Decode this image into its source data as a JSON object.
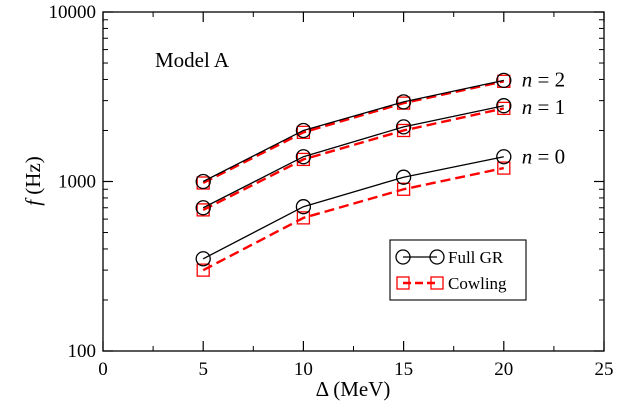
{
  "chart_data": {
    "type": "line",
    "annotation": "Model A",
    "xlabel": "Δ (MeV)",
    "ylabel_italic": "f",
    "ylabel_rest": " (Hz)",
    "xlim": [
      0,
      25
    ],
    "ylim": [
      100,
      10000
    ],
    "yscale": "log",
    "grid": false,
    "legend_position": "lower-right",
    "x_ticks": [
      0,
      5,
      10,
      15,
      20,
      25
    ],
    "y_ticks": [
      {
        "value": 100,
        "label": "100"
      },
      {
        "value": 1000,
        "label": "1000"
      },
      {
        "value": 10000,
        "label": "10000"
      }
    ],
    "legend": [
      {
        "name": "Full GR",
        "color": "#000000",
        "marker": "circle",
        "dash": "solid"
      },
      {
        "name": "Cowling",
        "color": "#ff0000",
        "marker": "square",
        "dash": "dashed"
      }
    ],
    "mode_labels": [
      {
        "italic": "n",
        "rest": " = 2",
        "at": [
          20,
          4000
        ]
      },
      {
        "italic": "n",
        "rest": " = 1",
        "at": [
          20,
          2750
        ]
      },
      {
        "italic": "n",
        "rest": " = 0",
        "at": [
          20,
          1400
        ]
      }
    ],
    "series": [
      {
        "name": "Full GR",
        "mode": "n = 0",
        "style": "Full GR",
        "x": [
          5,
          10,
          15,
          20
        ],
        "y": [
          350,
          710,
          1060,
          1400
        ]
      },
      {
        "name": "Cowling",
        "mode": "n = 0",
        "style": "Cowling",
        "x": [
          5,
          10,
          15,
          20
        ],
        "y": [
          300,
          610,
          900,
          1200
        ]
      },
      {
        "name": "Full GR",
        "mode": "n = 1",
        "style": "Full GR",
        "x": [
          5,
          10,
          15,
          20
        ],
        "y": [
          700,
          1400,
          2100,
          2800
        ]
      },
      {
        "name": "Cowling",
        "mode": "n = 1",
        "style": "Cowling",
        "x": [
          5,
          10,
          15,
          20
        ],
        "y": [
          680,
          1350,
          2000,
          2700
        ]
      },
      {
        "name": "Full GR",
        "mode": "n = 2",
        "style": "Full GR",
        "x": [
          5,
          10,
          15,
          20
        ],
        "y": [
          1000,
          2000,
          2950,
          3950
        ]
      },
      {
        "name": "Cowling",
        "mode": "n = 2",
        "style": "Cowling",
        "x": [
          5,
          10,
          15,
          20
        ],
        "y": [
          980,
          1950,
          2900,
          3900
        ]
      }
    ]
  }
}
